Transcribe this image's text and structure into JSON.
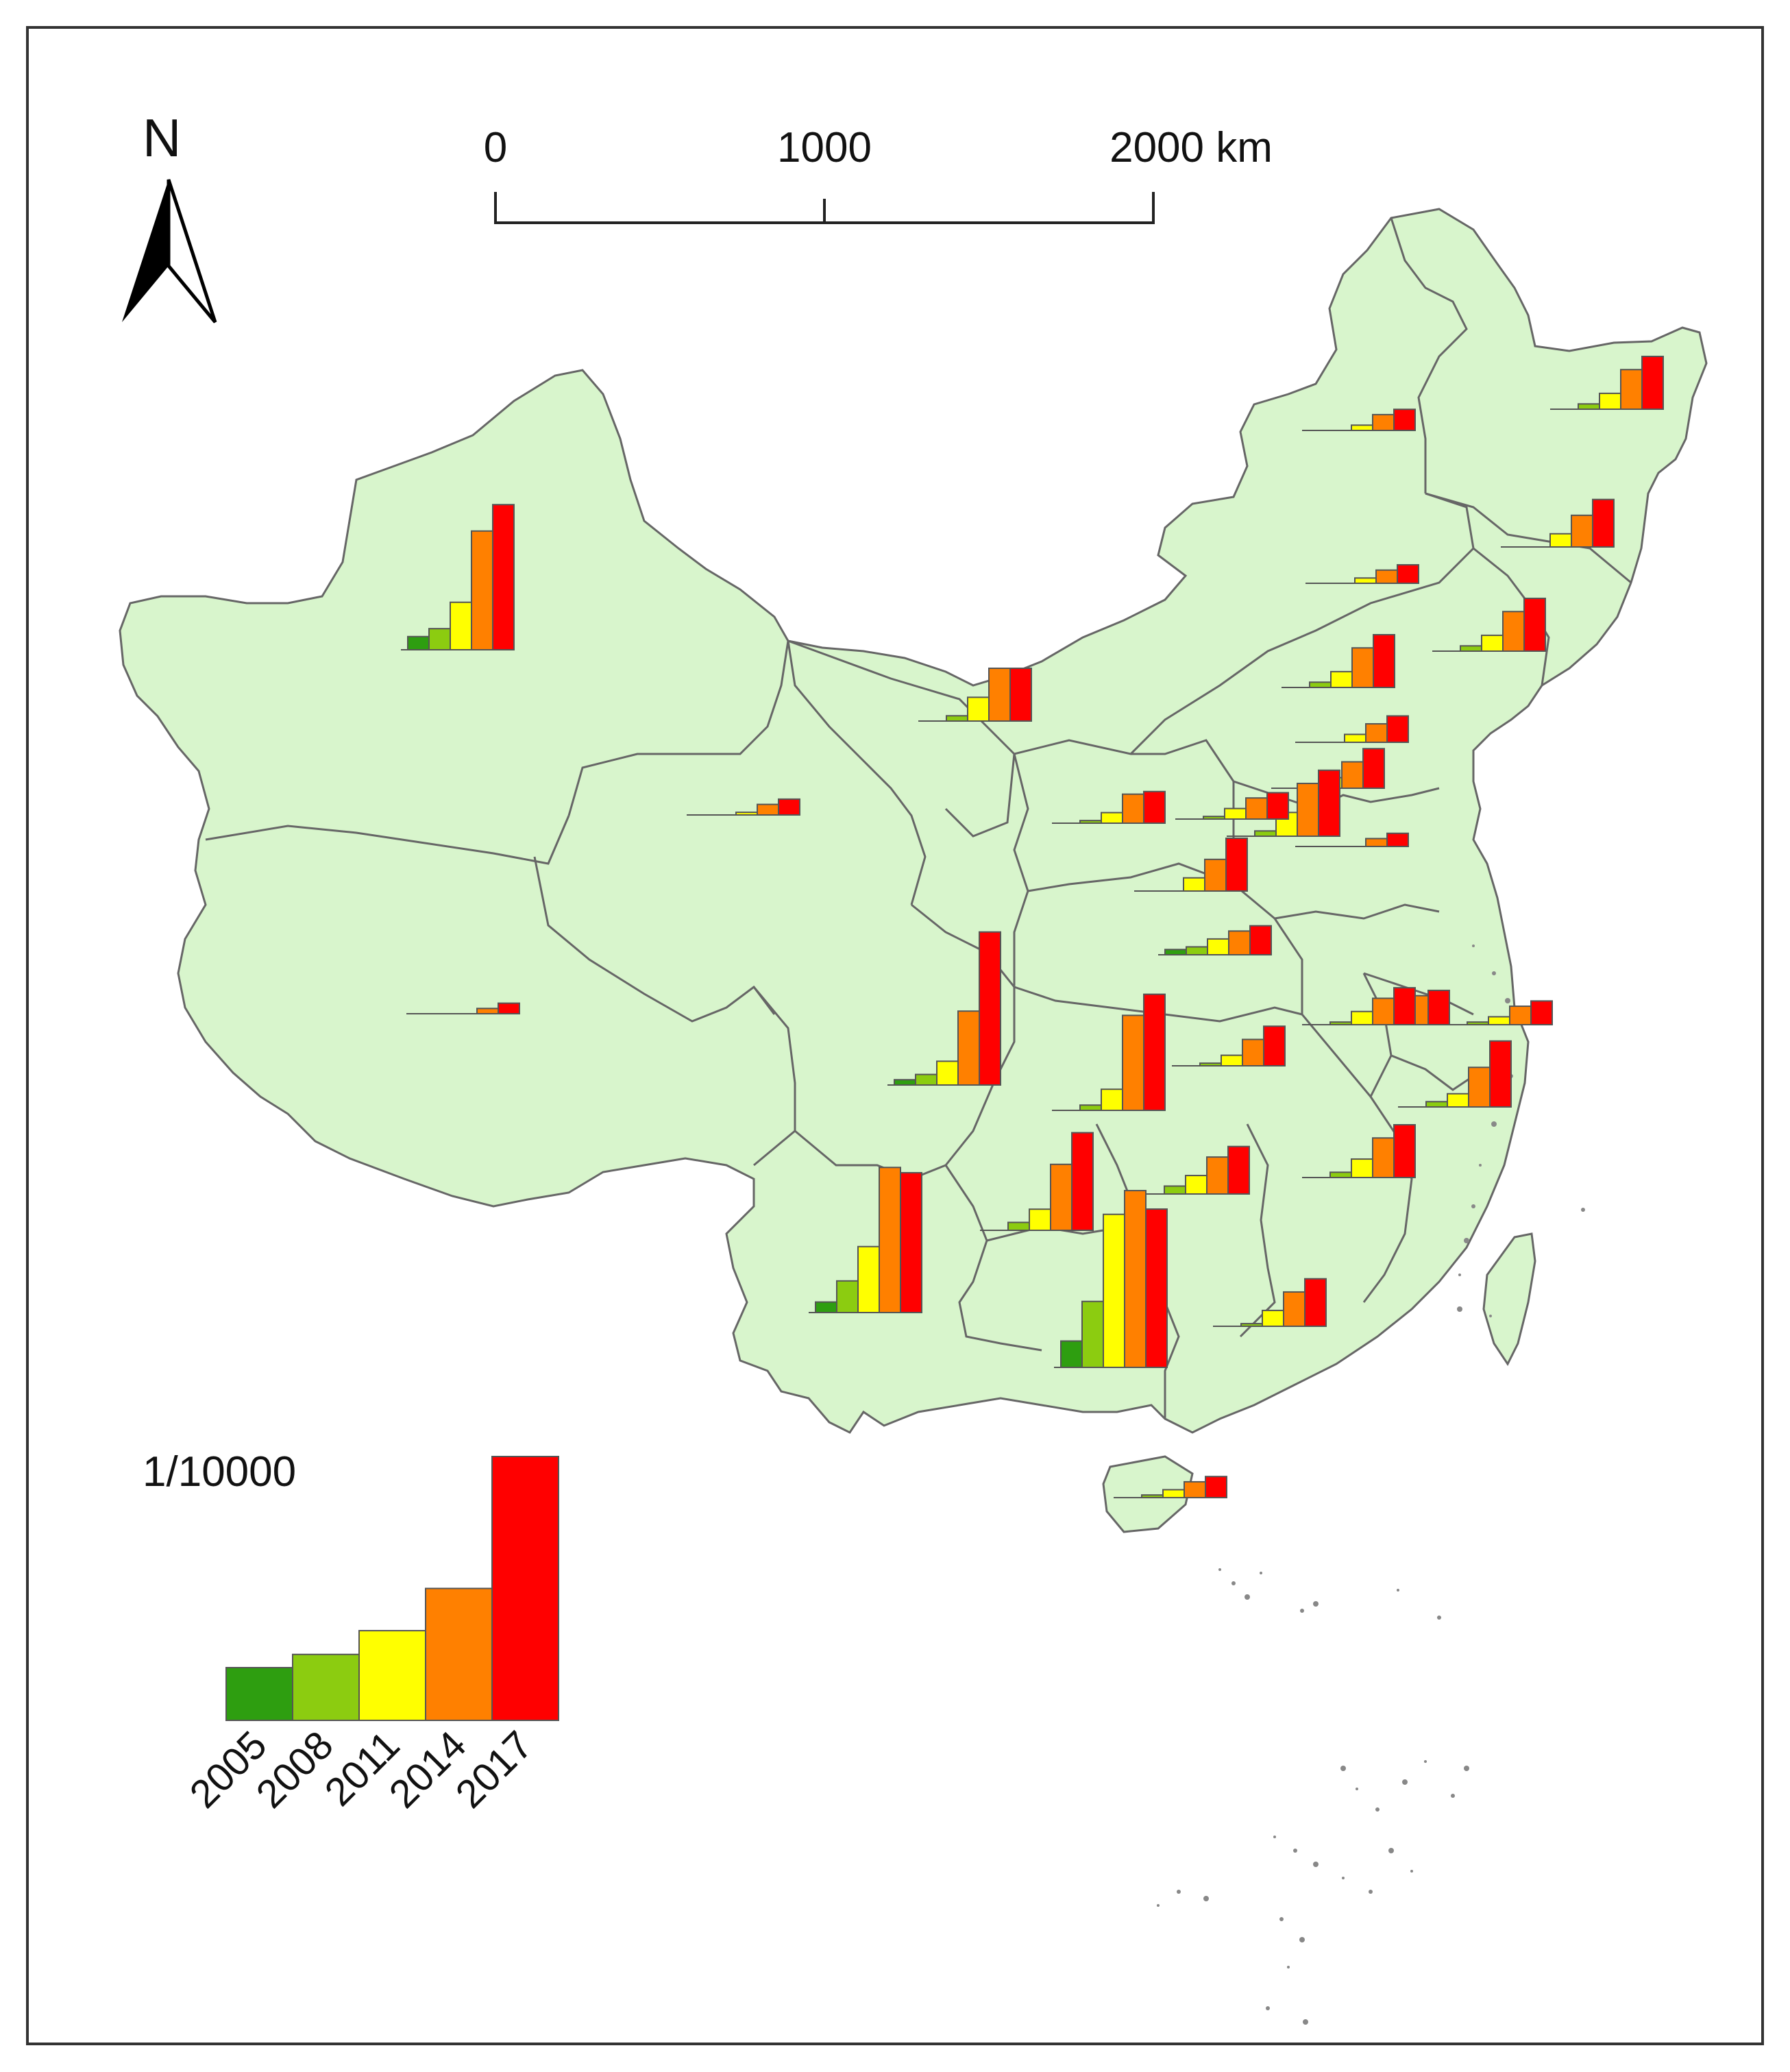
{
  "north_arrow": {
    "label": "N"
  },
  "scale_bar": {
    "ticks": [
      "0",
      "1000",
      "2000 km"
    ]
  },
  "legend": {
    "unit": "1/10000",
    "years": [
      "2005",
      "2008",
      "2011",
      "2014",
      "2017"
    ]
  },
  "colors": {
    "land": "#d8f5cc",
    "border": "#666666",
    "years": [
      "#2e9e10",
      "#8ccc10",
      "#ffff00",
      "#ff8000",
      "#ff0000"
    ]
  },
  "chart_data": {
    "type": "bar",
    "categories": [
      "2005",
      "2008",
      "2011",
      "2014",
      "2017"
    ],
    "note_values_relative": "legend bar heights relative to the 2017 bar",
    "legend_values": [
      0.2,
      0.25,
      0.34,
      0.5,
      1.0
    ],
    "province_bars": [
      [
        0.05,
        0.08,
        0.18,
        0.45,
        0.55
      ],
      [
        0.0,
        0.02,
        0.06,
        0.15,
        0.2
      ],
      [
        0.0,
        0.0,
        0.05,
        0.12,
        0.18
      ],
      [
        0.0,
        0.02,
        0.06,
        0.15,
        0.2
      ],
      [
        0.0,
        0.0,
        0.02,
        0.05,
        0.07
      ],
      [
        0.0,
        0.0,
        0.02,
        0.06,
        0.08
      ],
      [
        0.0,
        0.02,
        0.06,
        0.15,
        0.2
      ],
      [
        0.0,
        0.0,
        0.03,
        0.07,
        0.1
      ],
      [
        0.0,
        0.01,
        0.04,
        0.1,
        0.15
      ],
      [
        0.0,
        0.02,
        0.09,
        0.2,
        0.25
      ],
      [
        0.0,
        0.02,
        0.09,
        0.2,
        0.2
      ],
      [
        0.0,
        0.01,
        0.04,
        0.08,
        0.1
      ],
      [
        0.0,
        0.01,
        0.04,
        0.11,
        0.12
      ],
      [
        0.0,
        0.0,
        0.01,
        0.04,
        0.06
      ],
      [
        0.0,
        0.0,
        0.0,
        0.03,
        0.05
      ],
      [
        0.0,
        0.0,
        0.05,
        0.12,
        0.2
      ],
      [
        0.02,
        0.03,
        0.06,
        0.09,
        0.11
      ],
      [
        0.0,
        0.0,
        0.0,
        0.02,
        0.04
      ],
      [
        0.02,
        0.04,
        0.09,
        0.28,
        0.58
      ],
      [
        0.0,
        0.02,
        0.08,
        0.36,
        0.44
      ],
      [
        0.0,
        0.01,
        0.04,
        0.1,
        0.15
      ],
      [
        0.0,
        0.01,
        0.04,
        0.11,
        0.13
      ],
      [
        0.0,
        0.01,
        0.05,
        0.1,
        0.14
      ],
      [
        0.0,
        0.01,
        0.03,
        0.07,
        0.09
      ],
      [
        0.0,
        0.02,
        0.05,
        0.15,
        0.25
      ],
      [
        0.0,
        0.02,
        0.07,
        0.15,
        0.2
      ],
      [
        0.04,
        0.12,
        0.25,
        0.55,
        0.53
      ],
      [
        0.0,
        0.03,
        0.08,
        0.25,
        0.37
      ],
      [
        0.0,
        0.03,
        0.07,
        0.14,
        0.18
      ],
      [
        0.1,
        0.25,
        0.58,
        0.67,
        0.6
      ],
      [
        0.0,
        0.01,
        0.06,
        0.13,
        0.18
      ],
      [
        0.0,
        0.01,
        0.03,
        0.06,
        0.08
      ]
    ]
  }
}
